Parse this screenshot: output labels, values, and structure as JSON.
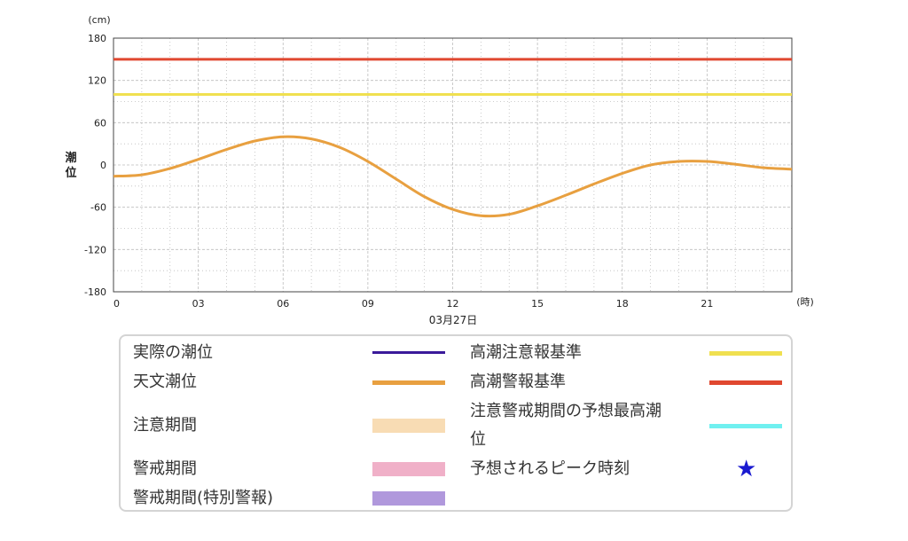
{
  "chart_data": {
    "type": "line",
    "y_unit": "(cm)",
    "x_unit": "(時)",
    "ylabel": "潮位",
    "date_label": "03月27日",
    "ylim": [
      -180,
      180
    ],
    "xlim": [
      0,
      24
    ],
    "yticks": [
      "180",
      "120",
      "60",
      "0",
      "-60",
      "-120",
      "-180"
    ],
    "xticks": [
      "0",
      "03",
      "06",
      "09",
      "12",
      "15",
      "18",
      "21"
    ],
    "grid": true,
    "series": [
      {
        "name": "天文潮位",
        "color": "#e8a040",
        "x": [
          0,
          1,
          2,
          3,
          4,
          5,
          6,
          7,
          8,
          9,
          10,
          11,
          12,
          13,
          14,
          15,
          16,
          17,
          18,
          19,
          20,
          21,
          22,
          23,
          24
        ],
        "y": [
          -16,
          -14,
          -5,
          8,
          22,
          34,
          40,
          37,
          25,
          5,
          -20,
          -45,
          -63,
          -72,
          -70,
          -58,
          -43,
          -27,
          -12,
          0,
          5,
          5,
          1,
          -4,
          -6
        ]
      },
      {
        "name": "高潮注意報基準",
        "color": "#f0e050",
        "constant": 100
      },
      {
        "name": "高潮警報基準",
        "color": "#e04830",
        "constant": 150
      }
    ]
  },
  "legend": {
    "items": [
      {
        "label": "実際の潮位",
        "type": "line",
        "color": "#3a1a9a"
      },
      {
        "label": "高潮注意報基準",
        "type": "line",
        "color": "#f0e050"
      },
      {
        "label": "天文潮位",
        "type": "line",
        "color": "#e8a040"
      },
      {
        "label": "高潮警報基準",
        "type": "line",
        "color": "#e04830"
      },
      {
        "label": "注意期間",
        "type": "band",
        "color": "#f8dcb4"
      },
      {
        "label": "注意警戒期間の予想最高潮",
        "label_cont": "位",
        "type": "line",
        "color": "#70f0f0"
      },
      {
        "label": "警戒期間",
        "type": "band",
        "color": "#f0b0c8"
      },
      {
        "label": "予想されるピーク時刻",
        "type": "star",
        "color": "#1a1ad0",
        "glyph": "★"
      },
      {
        "label": "警戒期間(特別警報)",
        "type": "band",
        "color": "#b098dc"
      }
    ]
  }
}
